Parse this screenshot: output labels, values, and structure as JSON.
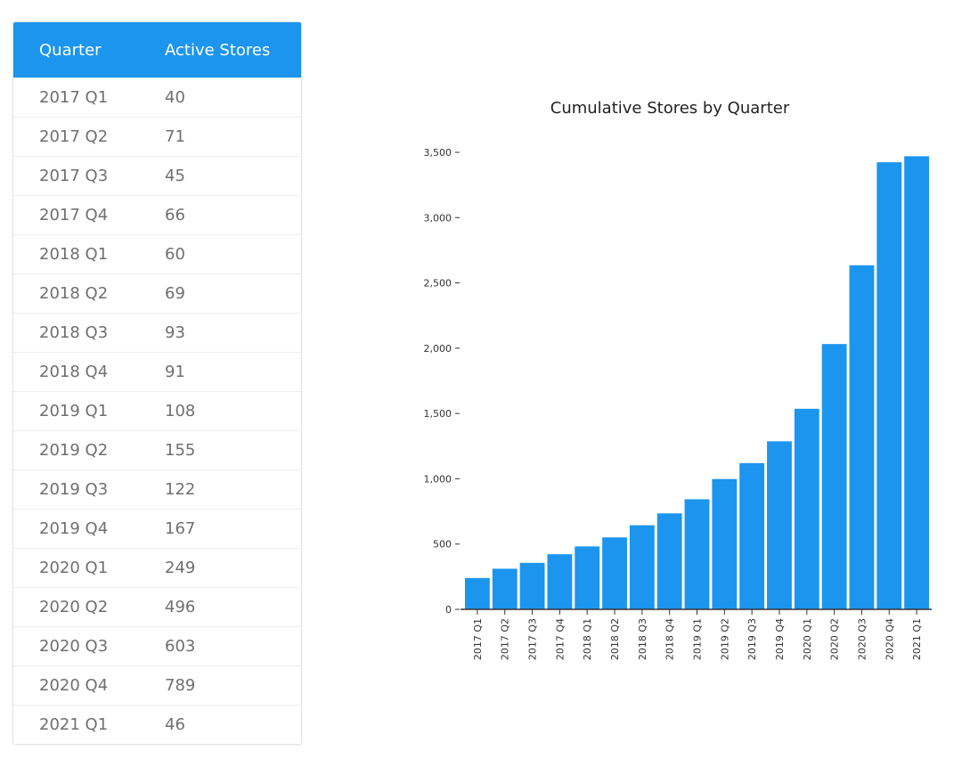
{
  "table": {
    "headers": [
      "Quarter",
      "Active Stores"
    ],
    "rows": [
      [
        "2017 Q1",
        "40"
      ],
      [
        "2017 Q2",
        "71"
      ],
      [
        "2017 Q3",
        "45"
      ],
      [
        "2017 Q4",
        "66"
      ],
      [
        "2018 Q1",
        "60"
      ],
      [
        "2018 Q2",
        "69"
      ],
      [
        "2018 Q3",
        "93"
      ],
      [
        "2018 Q4",
        "91"
      ],
      [
        "2019 Q1",
        "108"
      ],
      [
        "2019 Q2",
        "155"
      ],
      [
        "2019 Q3",
        "122"
      ],
      [
        "2019 Q4",
        "167"
      ],
      [
        "2020 Q1",
        "249"
      ],
      [
        "2020 Q2",
        "496"
      ],
      [
        "2020 Q3",
        "603"
      ],
      [
        "2020 Q4",
        "789"
      ],
      [
        "2021 Q1",
        "46"
      ]
    ]
  },
  "accent": "#1c95ef",
  "chart_data": {
    "type": "bar",
    "title": "Cumulative Stores by Quarter",
    "xlabel": "",
    "ylabel": "",
    "categories": [
      "2017 Q1",
      "2017 Q2",
      "2017 Q3",
      "2017 Q4",
      "2018 Q1",
      "2018 Q2",
      "2018 Q3",
      "2018 Q4",
      "2019 Q1",
      "2019 Q2",
      "2019 Q3",
      "2019 Q4",
      "2020 Q1",
      "2020 Q2",
      "2020 Q3",
      "2020 Q4",
      "2021 Q1"
    ],
    "values": [
      240,
      311,
      356,
      422,
      482,
      551,
      644,
      735,
      843,
      998,
      1120,
      1287,
      1536,
      2032,
      2635,
      3424,
      3470
    ],
    "ylim": [
      0,
      3500
    ],
    "yticks": [
      0,
      500,
      1000,
      1500,
      2000,
      2500,
      3000,
      3500
    ],
    "ytick_labels": [
      "0",
      "500",
      "1,000",
      "1,500",
      "2,000",
      "2,500",
      "3,000",
      "3,500"
    ],
    "grid": false
  }
}
